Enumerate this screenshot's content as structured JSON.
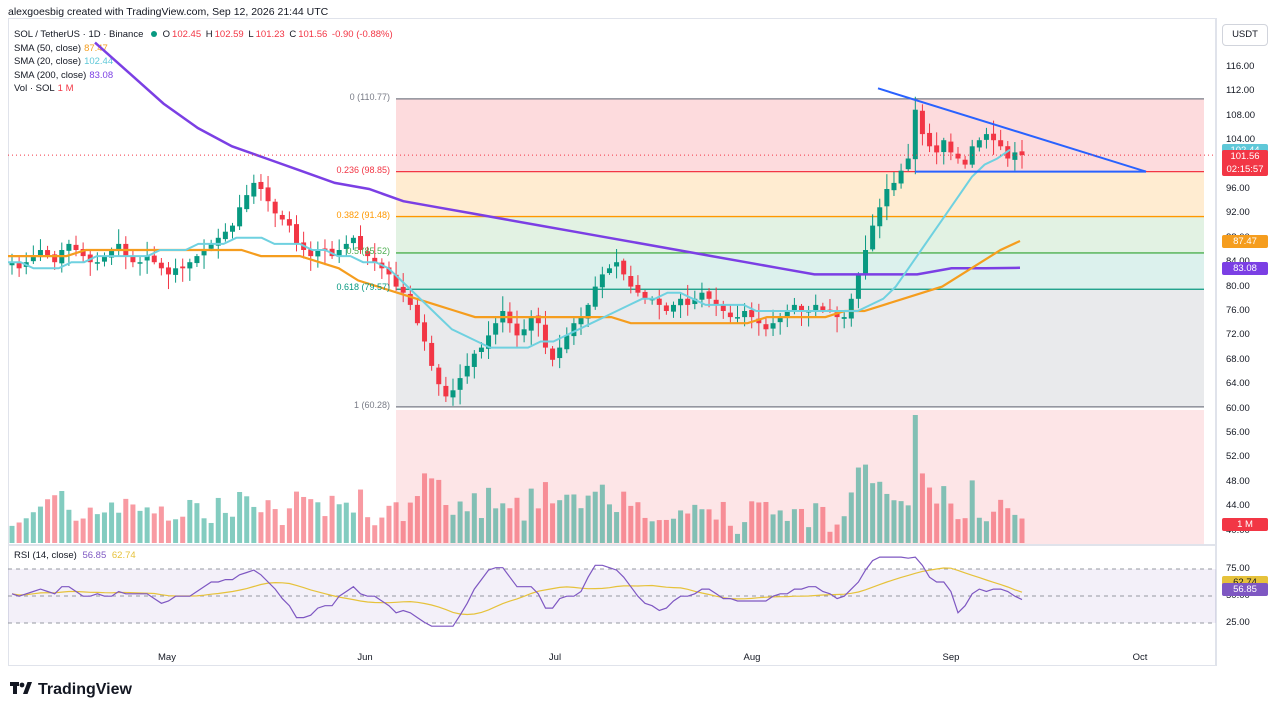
{
  "header": {
    "credit": "alexgoesbig created with TradingView.com, Sep 12, 2026 21:44 UTC"
  },
  "legend": {
    "symbol": "SOL / TetherUS · 1D · Binance",
    "open_label": "O",
    "open": "102.45",
    "high_label": "H",
    "high": "102.59",
    "low_label": "L",
    "low": "101.23",
    "close_label": "C",
    "close": "101.56",
    "change": "-0.90 (-0.88%)",
    "indicators": [
      {
        "name": "SMA (50, close)",
        "value": "87.47",
        "color": "#f59d1e"
      },
      {
        "name": "SMA (20, close)",
        "value": "102.44",
        "color": "#6fd1e0"
      },
      {
        "name": "SMA (200, close)",
        "value": "83.08",
        "color": "#7b3fe4"
      },
      {
        "name": "Vol · SOL",
        "value": "1 M",
        "color": "#f23645"
      }
    ]
  },
  "rsi_legend": {
    "name": "RSI (14, close)",
    "value": "56.85",
    "ma": "62.74",
    "value_color": "#7e57c2",
    "ma_color": "#e6c23b"
  },
  "price_axis": {
    "currency": "USDT",
    "ticks": [
      "116.00",
      "112.00",
      "108.00",
      "104.00",
      "100.00",
      "96.00",
      "92.00",
      "88.00",
      "84.00",
      "80.00",
      "76.00",
      "72.00",
      "68.00",
      "64.00",
      "60.00",
      "56.00",
      "52.00",
      "48.00",
      "44.00",
      "40.00"
    ],
    "labels": {
      "sma20": {
        "text": "102.44",
        "color": "#5fc8d8"
      },
      "last": {
        "text": "101.56",
        "countdown": "02:15:57",
        "color": "#f23645"
      },
      "sma50": {
        "text": "87.47",
        "color": "#f59d1e"
      },
      "sma200": {
        "text": "83.08",
        "color": "#7b3fe4"
      },
      "vol": {
        "text": "1 M",
        "color": "#f23645"
      }
    }
  },
  "rsi_axis": {
    "ticks": [
      "75.00",
      "50.00",
      "25.00"
    ],
    "labels": {
      "ma": {
        "text": "62.74",
        "color": "#e6c23b"
      },
      "rsi": {
        "text": "56.85",
        "color": "#7e57c2"
      }
    }
  },
  "time_axis": {
    "ticks": [
      "May",
      "Jun",
      "Jul",
      "Aug",
      "Sep",
      "Oct"
    ]
  },
  "fib_levels": [
    {
      "label": "0 (110.77)",
      "price": 110.77,
      "color": "#787b86"
    },
    {
      "label": "0.236 (98.85)",
      "price": 98.85,
      "color": "#f23645"
    },
    {
      "label": "0.382 (91.48)",
      "price": 91.48,
      "color": "#ff9800"
    },
    {
      "label": "0.5 (85.52)",
      "price": 85.52,
      "color": "#4caf50"
    },
    {
      "label": "0.618 (79.57)",
      "price": 79.57,
      "color": "#089981"
    },
    {
      "label": "1 (60.28)",
      "price": 60.28,
      "color": "#787b86"
    }
  ],
  "brand": {
    "name": "TradingView"
  },
  "chart_data": {
    "type": "candlestick",
    "symbol": "SOL / TetherUS",
    "timeframe": "1D",
    "price_range": [
      40,
      118
    ],
    "dates_approx": [
      "2026-04-03",
      "2026-09-13"
    ],
    "price_path_close": [
      84,
      83,
      84,
      85,
      86,
      85,
      84,
      86,
      87,
      86,
      85,
      84,
      84,
      85,
      86,
      87,
      85,
      84,
      84,
      85,
      84,
      83,
      82,
      83,
      83,
      84,
      85,
      86,
      87,
      88,
      89,
      90,
      93,
      95,
      97,
      96,
      94,
      92,
      91,
      90,
      87,
      86,
      85,
      86,
      86,
      85,
      86,
      87,
      88,
      86,
      85,
      84,
      83,
      82,
      80,
      79,
      77,
      74,
      71,
      67,
      64,
      62,
      63,
      65,
      67,
      69,
      70,
      72,
      74,
      76,
      74,
      72,
      73,
      75,
      74,
      70,
      68,
      70,
      72,
      74,
      75,
      77,
      80,
      82,
      83,
      84,
      82,
      80,
      79,
      78,
      78,
      77,
      76,
      77,
      78,
      77,
      78,
      79,
      78,
      77,
      76,
      75,
      75,
      76,
      75,
      74,
      73,
      74,
      75,
      76,
      77,
      76,
      76,
      77,
      76,
      76,
      75,
      75,
      78,
      82,
      86,
      90,
      93,
      96,
      97,
      99,
      101,
      109,
      105,
      103,
      102,
      104,
      102,
      101,
      100,
      103,
      104,
      105,
      104,
      103,
      101,
      102,
      101.56
    ],
    "sma20_path": [
      84,
      84,
      83,
      83,
      83,
      84,
      84,
      85,
      85,
      85,
      85,
      85,
      86,
      86,
      86,
      87,
      87,
      87,
      88,
      88,
      88,
      87,
      87,
      87,
      86,
      86,
      85,
      85,
      84,
      84,
      83,
      81,
      79,
      77,
      75,
      73,
      72,
      71,
      70,
      70,
      70,
      70,
      71,
      71,
      72,
      73,
      74,
      75,
      76,
      77,
      78,
      78,
      79,
      79,
      78,
      77,
      77,
      77,
      77,
      76,
      76,
      76,
      76,
      76,
      76,
      76,
      76,
      76,
      77,
      78,
      80,
      83,
      86,
      89,
      92,
      95,
      98,
      100,
      101,
      102.44
    ],
    "sma50_path": [
      85,
      85,
      85,
      85,
      86,
      86,
      86,
      86,
      86,
      86,
      86,
      86,
      86,
      85,
      85,
      85,
      84,
      83,
      81,
      80,
      79,
      78,
      77,
      76,
      75,
      75,
      75,
      75,
      75,
      75,
      75,
      75,
      74,
      74,
      74,
      74,
      74,
      74,
      74,
      75,
      75,
      75,
      75,
      76,
      76,
      77,
      78,
      79,
      80,
      82,
      84,
      86,
      87.47
    ],
    "sma200_path": [
      120,
      115,
      110,
      106,
      103,
      101,
      99,
      97,
      96,
      94,
      93,
      92,
      91,
      90,
      89,
      88,
      87,
      86,
      85,
      84,
      83,
      82,
      82,
      82,
      82,
      83,
      83,
      83.08
    ],
    "volume_range_millions_approx": [
      0.4,
      4.2
    ],
    "rsi_range": [
      25,
      90
    ],
    "trendline": {
      "from_price": 112.5,
      "to_price": 98.85
    },
    "support_line": 98.85
  }
}
